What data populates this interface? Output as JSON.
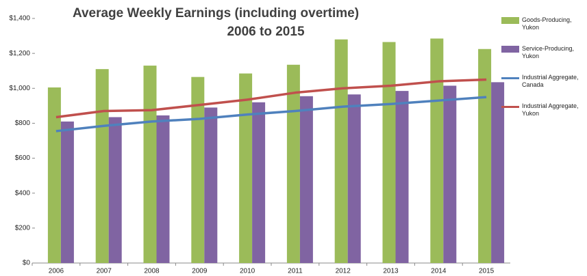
{
  "chart_data": {
    "type": "bar-line",
    "title": "Average Weekly Earnings (including overtime)",
    "subtitle": "2006 to 2015",
    "categories": [
      "2006",
      "2007",
      "2008",
      "2009",
      "2010",
      "2011",
      "2012",
      "2013",
      "2014",
      "2015"
    ],
    "series": [
      {
        "name": "Goods-Producing, Yukon",
        "type": "bar",
        "color": "#9bbb59",
        "values": [
          1005,
          1110,
          1130,
          1065,
          1085,
          1135,
          1280,
          1265,
          1285,
          1225
        ]
      },
      {
        "name": "Service-Producing, Yukon",
        "type": "bar",
        "color": "#8064a2",
        "values": [
          810,
          835,
          845,
          890,
          920,
          955,
          965,
          985,
          1015,
          1035
        ]
      },
      {
        "name": "Industrial Aggregate, Canada",
        "type": "line",
        "color": "#4f81bd",
        "values": [
          755,
          785,
          810,
          825,
          850,
          870,
          895,
          910,
          930,
          950
        ]
      },
      {
        "name": "Industrial Aggregate, Yukon",
        "type": "line",
        "color": "#c0504d",
        "values": [
          835,
          870,
          875,
          905,
          935,
          975,
          1000,
          1015,
          1040,
          1050
        ]
      }
    ],
    "ylim": [
      0,
      1400
    ],
    "yticks": [
      {
        "value": 0,
        "label": "$0"
      },
      {
        "value": 200,
        "label": "$200"
      },
      {
        "value": 400,
        "label": "$400"
      },
      {
        "value": 600,
        "label": "$600"
      },
      {
        "value": 800,
        "label": "$800"
      },
      {
        "value": 1000,
        "label": "$1,000"
      },
      {
        "value": 1200,
        "label": "$1,200"
      },
      {
        "value": 1400,
        "label": "$1,400"
      }
    ],
    "legend": "right"
  }
}
